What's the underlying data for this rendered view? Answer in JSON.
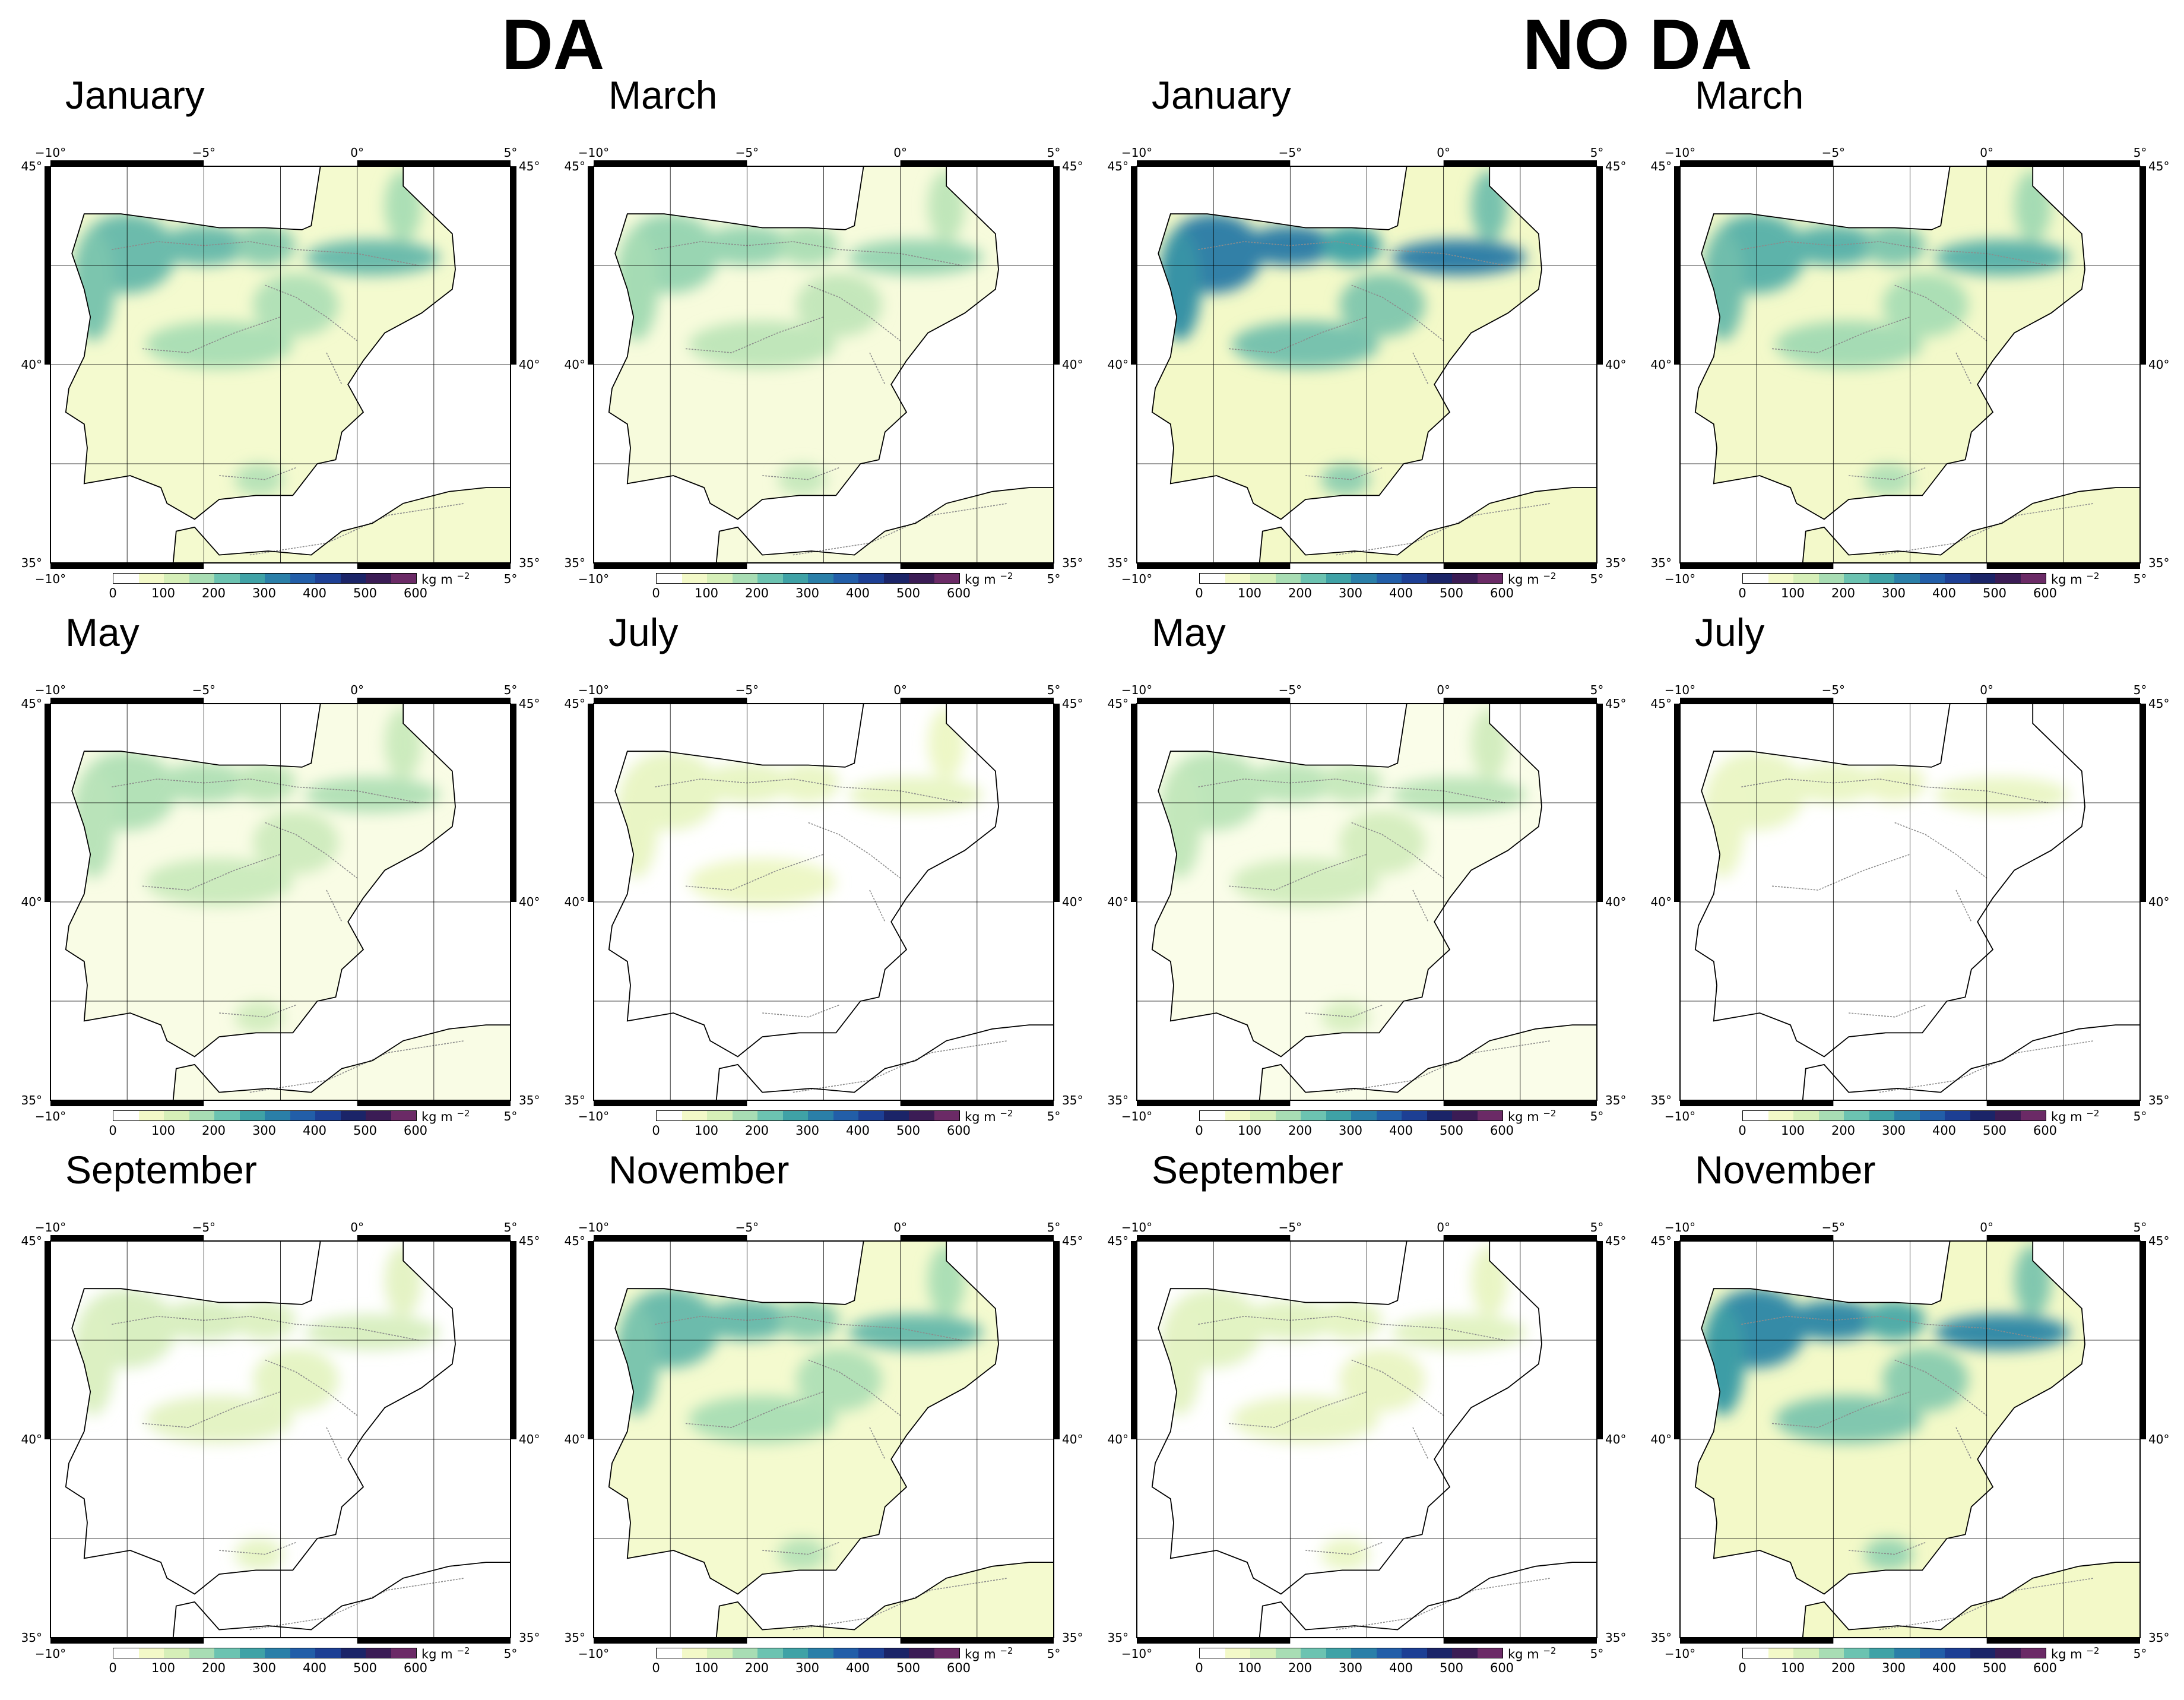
{
  "headers": {
    "da": "DA",
    "no_da": "NO DA"
  },
  "colorbar": {
    "unit": "kg m",
    "unit_exp": "−2",
    "ticks": [
      "0",
      "100",
      "200",
      "300",
      "400",
      "500",
      "600"
    ],
    "colors": [
      "#ffffff",
      "#f3f9c8",
      "#d6efb8",
      "#a8ddb4",
      "#6cc3b1",
      "#3fa2a6",
      "#2a7fa8",
      "#225ea8",
      "#1d3f94",
      "#1b2468",
      "#3b1c55",
      "#6b2a66"
    ]
  },
  "axes": {
    "lon_ticks": [
      "−10°",
      "−5°",
      "0°",
      "5°"
    ],
    "lat_ticks": [
      "45°",
      "40°",
      "35°"
    ]
  },
  "colors": {
    "land_low": "#f3f9c8",
    "land_mid": "#a8ddb4",
    "land_high": "#3fa2a6",
    "land_peak": "#225ea8",
    "coast": "#000000",
    "contour": "#8c8c8c",
    "grid": "#000000"
  },
  "panels": [
    {
      "title": "January",
      "intensity": 0.55
    },
    {
      "title": "March",
      "intensity": 0.4
    },
    {
      "title": "January",
      "intensity": 0.85
    },
    {
      "title": "March",
      "intensity": 0.6
    },
    {
      "title": "May",
      "intensity": 0.3
    },
    {
      "title": "July",
      "intensity": 0.05
    },
    {
      "title": "May",
      "intensity": 0.25
    },
    {
      "title": "July",
      "intensity": 0.04
    },
    {
      "title": "September",
      "intensity": 0.12
    },
    {
      "title": "November",
      "intensity": 0.55
    },
    {
      "title": "September",
      "intensity": 0.08
    },
    {
      "title": "November",
      "intensity": 0.8
    }
  ]
}
